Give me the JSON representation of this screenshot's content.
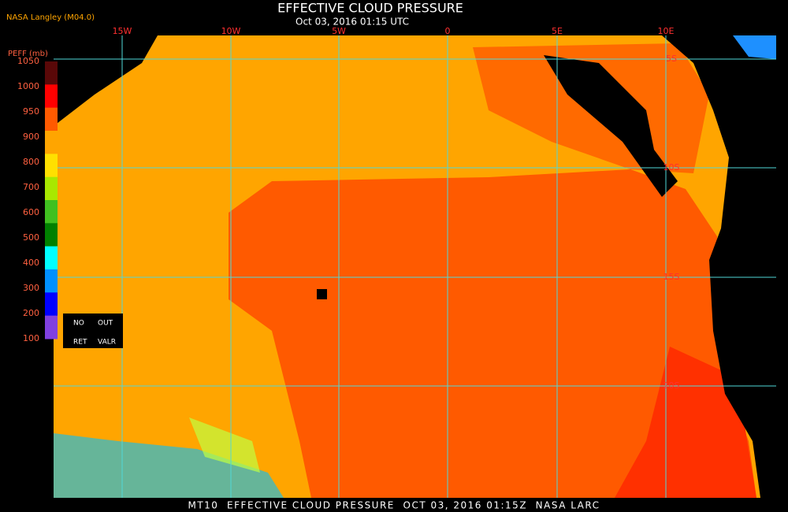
{
  "header": {
    "source": "NASA Langley (M04.0)",
    "title": "EFFECTIVE CLOUD PRESSURE",
    "subtitle": "Oct 03, 2016 01:15 UTC"
  },
  "colorbar": {
    "label": "PEFF (mb)",
    "ticks": [
      1050,
      1000,
      950,
      900,
      800,
      700,
      600,
      500,
      400,
      300,
      200,
      100
    ],
    "colors": [
      "#5a0808",
      "#ff0000",
      "#ff5a00",
      "#ffa500",
      "#ffe000",
      "#a8e800",
      "#40c020",
      "#008000",
      "#00ffff",
      "#0090ff",
      "#0000ff",
      "#8040e0"
    ],
    "legend_box": [
      [
        "NO",
        "OUT"
      ],
      [
        "RET",
        "VALR"
      ]
    ]
  },
  "map": {
    "lon_labels": [
      "15W",
      "10W",
      "5W",
      "0",
      "5E",
      "10E"
    ],
    "lat_labels": [
      "5S",
      "10S",
      "15S",
      "20S"
    ]
  },
  "footer": "MT10  EFFECTIVE CLOUD PRESSURE  OCT 03, 2016 01:15Z  NASA LARC"
}
